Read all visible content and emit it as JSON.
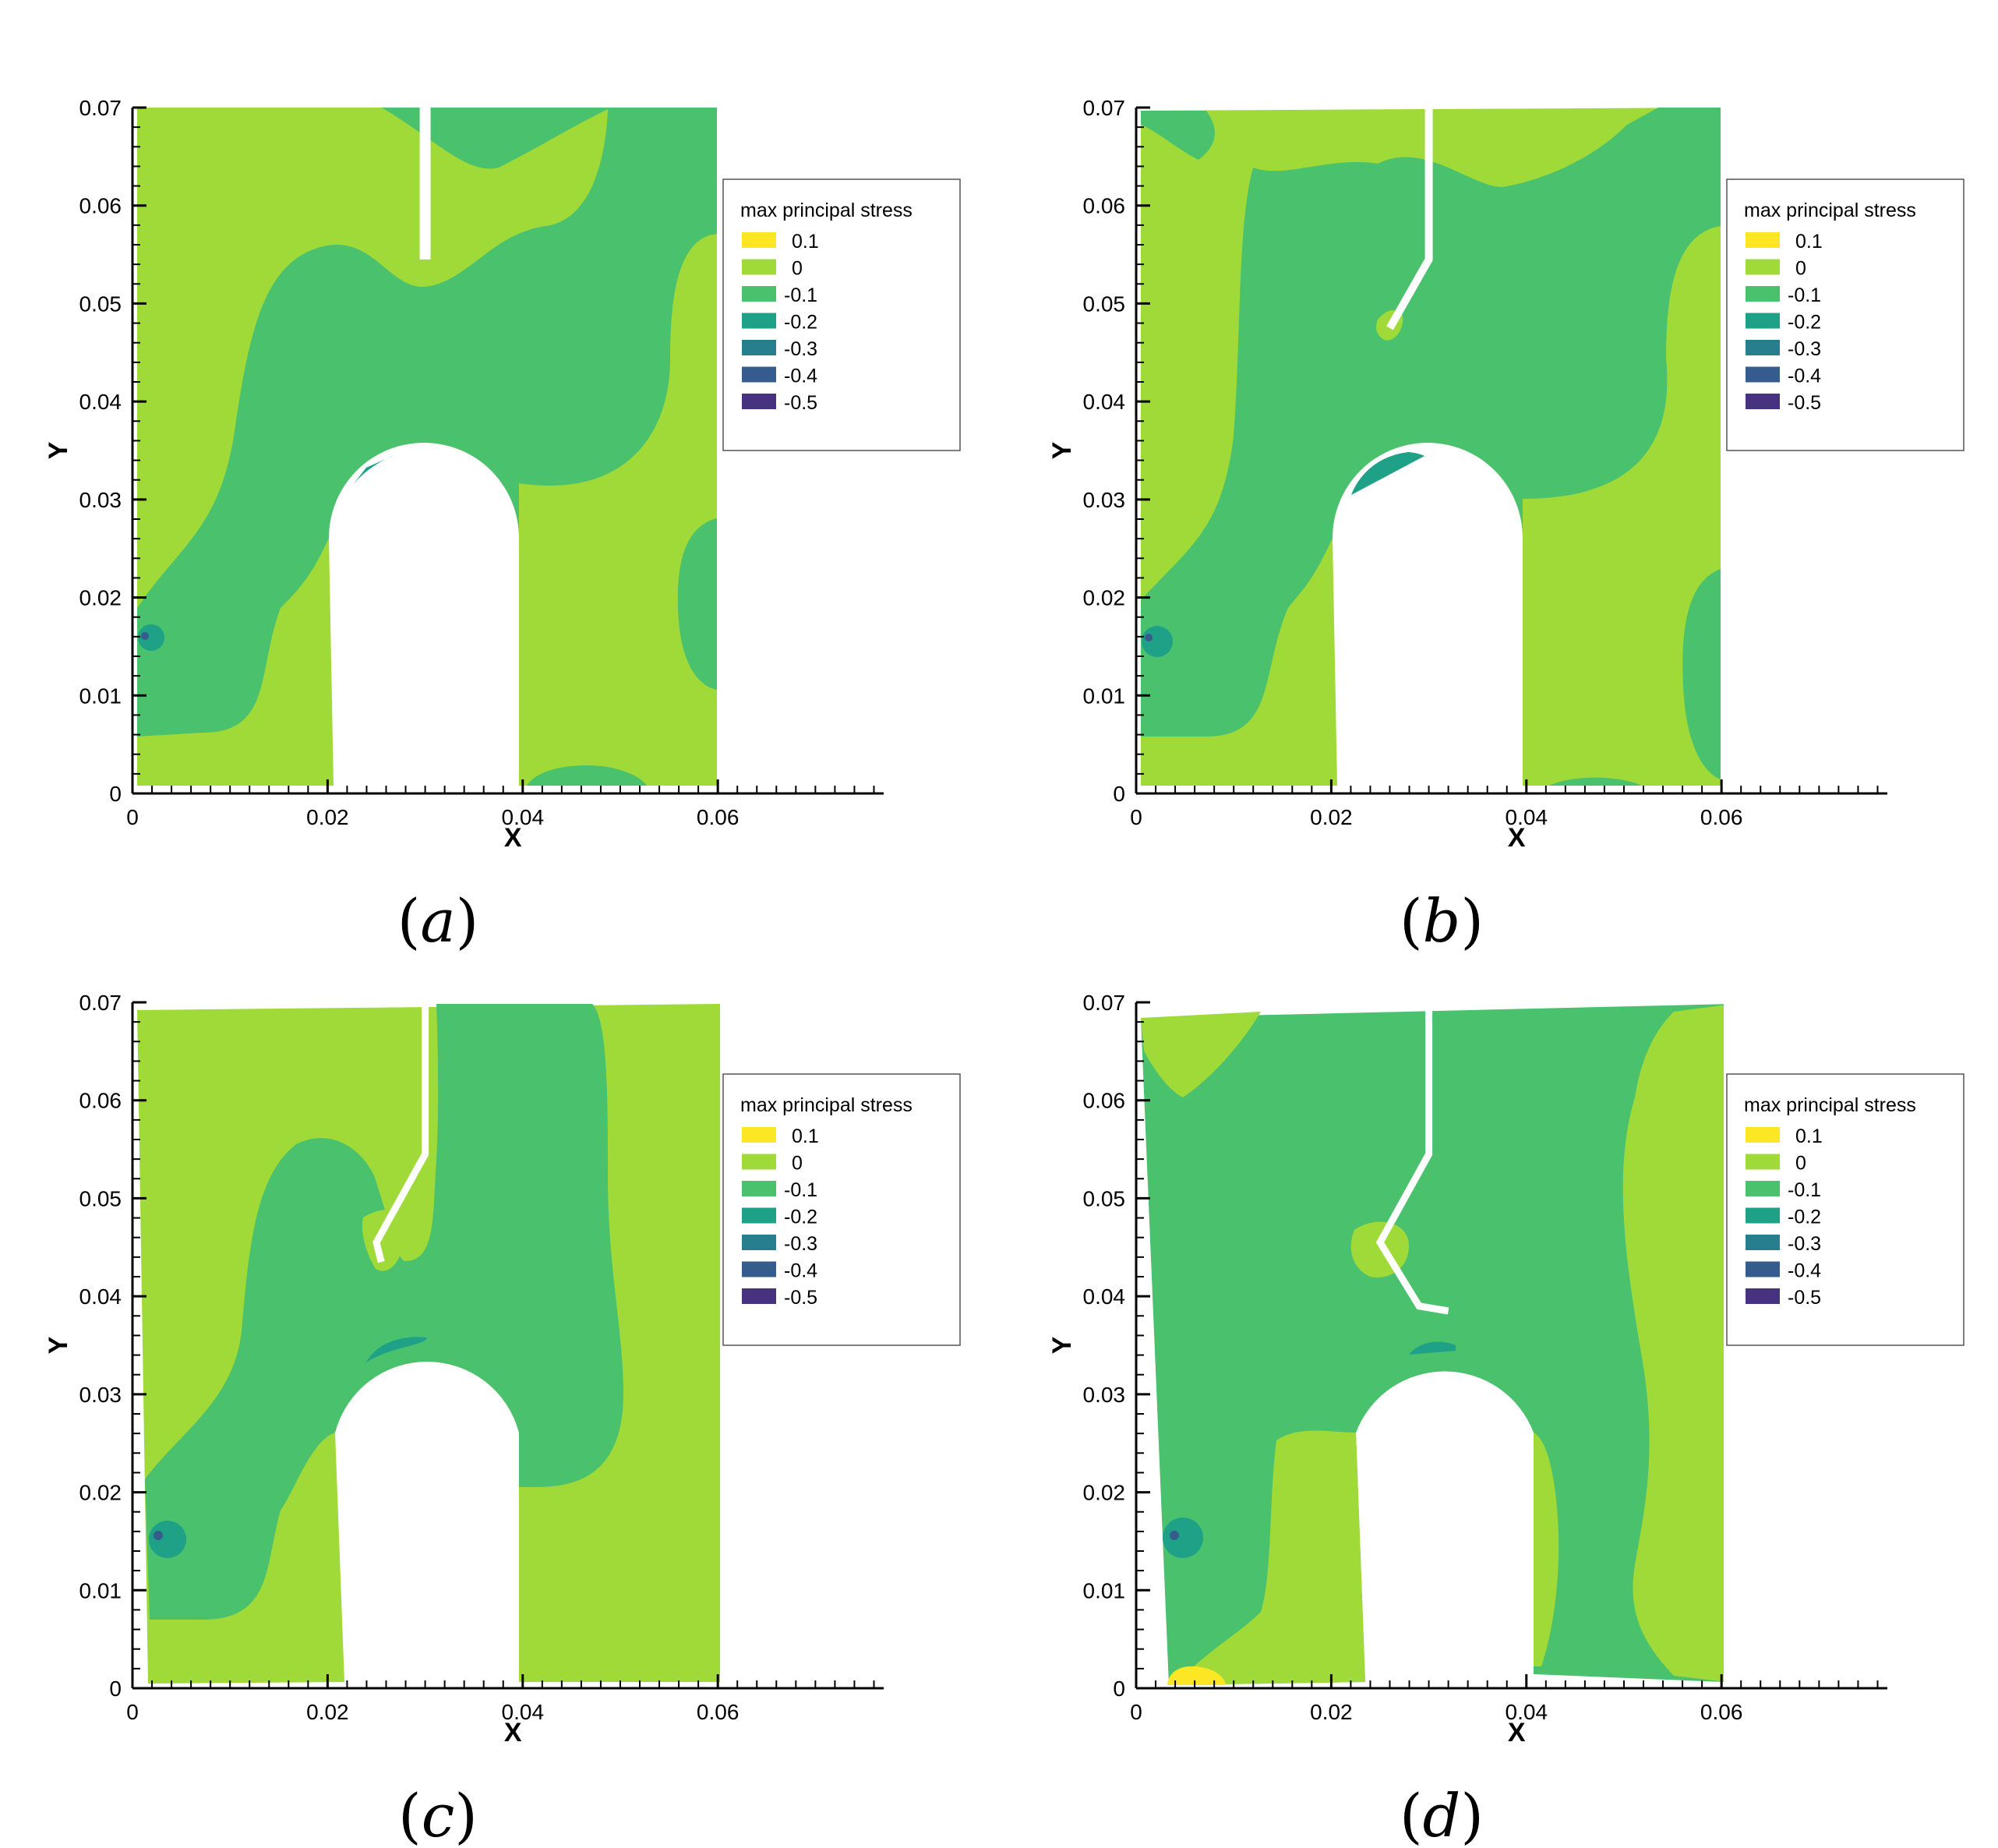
{
  "chart_data": [
    {
      "type": "heatmap",
      "panel_label": "(a)",
      "xlabel": "X",
      "ylabel": "Y",
      "xlim": [
        0,
        0.077
      ],
      "ylim": [
        0,
        0.07
      ],
      "x_ticks": [
        "0",
        "0.02",
        "0.04",
        "0.06"
      ],
      "y_ticks": [
        "0",
        "0.01",
        "0.02",
        "0.03",
        "0.04",
        "0.05",
        "0.06",
        "0.07"
      ],
      "crack_path": [
        [
          0.03,
          0.07
        ],
        [
          0.03,
          0.0545
        ]
      ]
    },
    {
      "type": "heatmap",
      "panel_label": "(b)",
      "xlabel": "X",
      "ylabel": "Y",
      "xlim": [
        0,
        0.077
      ],
      "ylim": [
        0,
        0.07
      ],
      "x_ticks": [
        "0",
        "0.02",
        "0.04",
        "0.06"
      ],
      "y_ticks": [
        "0",
        "0.01",
        "0.02",
        "0.03",
        "0.04",
        "0.05",
        "0.06",
        "0.07"
      ],
      "crack_path": [
        [
          0.03,
          0.07
        ],
        [
          0.03,
          0.0545
        ],
        [
          0.026,
          0.0475
        ]
      ]
    },
    {
      "type": "heatmap",
      "panel_label": "(c)",
      "xlabel": "X",
      "ylabel": "Y",
      "xlim": [
        0,
        0.077
      ],
      "ylim": [
        0,
        0.07
      ],
      "x_ticks": [
        "0",
        "0.02",
        "0.04",
        "0.06"
      ],
      "y_ticks": [
        "0",
        "0.01",
        "0.02",
        "0.03",
        "0.04",
        "0.05",
        "0.06",
        "0.07"
      ],
      "crack_path": [
        [
          0.03,
          0.07
        ],
        [
          0.03,
          0.0545
        ],
        [
          0.025,
          0.0455
        ],
        [
          0.0255,
          0.0435
        ]
      ]
    },
    {
      "type": "heatmap",
      "panel_label": "(d)",
      "xlabel": "X",
      "ylabel": "Y",
      "xlim": [
        0,
        0.077
      ],
      "ylim": [
        0,
        0.07
      ],
      "x_ticks": [
        "0",
        "0.02",
        "0.04",
        "0.06"
      ],
      "y_ticks": [
        "0",
        "0.01",
        "0.02",
        "0.03",
        "0.04",
        "0.05",
        "0.06",
        "0.07"
      ],
      "crack_path": [
        [
          0.03,
          0.07
        ],
        [
          0.03,
          0.0545
        ],
        [
          0.025,
          0.0455
        ],
        [
          0.029,
          0.039
        ],
        [
          0.032,
          0.0385
        ]
      ]
    }
  ],
  "legend": {
    "title": "max principal stress",
    "entries": [
      {
        "label": "0.1",
        "color": "#fde725"
      },
      {
        "label": "0",
        "color": "#a0da39"
      },
      {
        "label": "-0.1",
        "color": "#4ac16d"
      },
      {
        "label": "-0.2",
        "color": "#1fa187"
      },
      {
        "label": "-0.3",
        "color": "#277f8e"
      },
      {
        "label": "-0.4",
        "color": "#365c8d"
      },
      {
        "label": "-0.5",
        "color": "#46327e"
      }
    ]
  },
  "colors": {
    "zero_band": "#a0da39",
    "neg_band": "#4ac16d",
    "neg2_band": "#1fa187",
    "neg3_band": "#277f8e",
    "neg4_band": "#46327e",
    "pos_band": "#fde725"
  }
}
